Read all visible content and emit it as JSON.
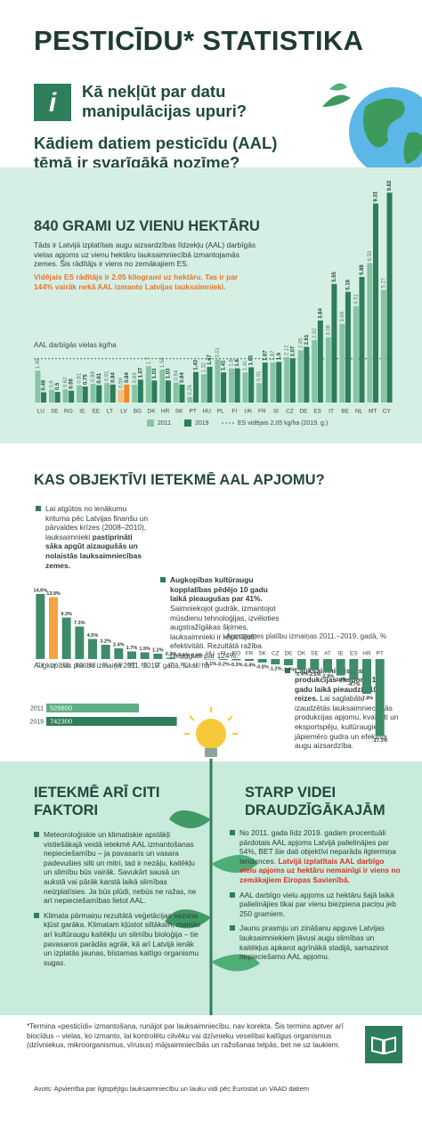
{
  "header": {
    "title": "PESTICĪDU* STATISTIKA",
    "question": "Kā nekļūt par datu manipulācijas upuri?",
    "subtitle": "Kādiem datiem pesticīdu (AAL) tēmā ir svarīgākā nozīme?"
  },
  "section1": {
    "heading": "840 GRAMI UZ VIENU HEKTĀRU",
    "text": "Tāds ir Latvijā izplatītais augu aizsardzības līdzekļu (AAL) darbīgās vielas apjoms uz vienu hektāru lauksaimniecībā izmantojamās zemes. Šis rādītājs ir viens no zemākajiem ES.",
    "highlight": "Vidējais ES rādītājs ir 2.05 kilogrami uz hektāru. Tas ir par 144% vairāk nekā AAL izmanto Latvijas lauksaimnieki."
  },
  "section2": {
    "heading": "KAS OBJEKTĪVI IETEKMĒ AAL APJOMU?",
    "items": [
      {
        "text": "Lai atgūtos no ienākumu krituma pēc Latvijas finanšu un pārvaldes krīzes (2008–2010), lauksaimnieki",
        "bold": "pastiprināti sāka apgūt aizaugušās un nolaistās lauksaimniecības zemes."
      },
      {
        "bold": "Augkopības kultūraugu kopplatības pēdējo 10 gadu laikā pieaugušas par 41%.",
        "text": "Saimniekojot gudrāk, izmantojot mūsdienu tehnoloģijas, izvēloties augstražīgākas šķirnes, lauksaimnieki ir kāpinājuši efektivitāti. Rezultātā ražība pieaugusi par 124%."
      },
      {
        "bold": "Lauksaimnieciskās produkcijas eksports 15 gadu laikā pieaudzis 10 reizes.",
        "text": "Lai saglabātu izaudzētās lauksaimnieciskās produkcijas apjomu, kvalitāti un eksportspēju, kultūraugiem jāpiemēro gudra un efektīva augu aizsardzība."
      }
    ]
  },
  "section3": {
    "left": {
      "heading": "IETEKMĒ ARĪ CITI FAKTORI",
      "items": [
        "Meteoroloģiskie un klimatiskie apstākļi vistiešākajā veidā ietekmē AAL izmantošanas nepieciešamību – ja pavasaris un vasara padevušies silti un mitri, tad ir nezāļu, kaitēkļu un slimību būs vairāk. Savukārt sausā un aukstā vai pārāk karstā laikā slimības neizplatīsies. Ja būs plūdi, nebūs ne ražas, ne arī nepieciešamības lietot AAL.",
        "Klimata pārmaiņu rezultātā veģetācijas sezona kļūst garāka. Klimatam kļūstot siltākam, mainās arī kultūraugu kaitēkļu un slimību bioloģija – tie pavasaros parādās agrāk, kā arī Latvijā ienāk un izplatās jaunas, bīstamas kaitīgo organismu sugas."
      ]
    },
    "right": {
      "heading": "STARP VIDEI DRAUDZĪGĀKAJĀM",
      "first": {
        "text": "No 2011. gada līdz 2019. gadam procentuāli pārdotais AAL apjoms Latvijā palielinājies par 54%, BET šie dati objektīvi neparāda ilgtermiņa tendences.",
        "highlight": "Latvijā izplatītais AAL darbīgo vielu apjoms uz hektāru nemainīgi ir viens no zemākajiem Eiropas Savienībā."
      },
      "items": [
        "AAL darbīgo vielu apjoms uz hektāru šajā laikā palielinājies tikai par vienu biezpiena paciņu jeb 250 gramiem.",
        "Jaunu prasmju un zināšanu apguve Latvijas lauksaimniekiem ļāvusi augu slimības un kaitēkļus apkarot agrīnākā stadijā, samazinot nepieciešamo AAL apjomu."
      ]
    }
  },
  "footnote": "*Termina «pesticīdi» izmantošana, runājot par lauksaimniecību, nav korekta. Šis termins aptver arī biocīdus – vielas, ko izmanto, lai kontrolētu cilvēku vai dzīvnieku veselībai kaitīgus organismus (dzīvniekus, mikroorganismus, vīrusus) mājsaimniecībās un ražošanas telpās, bet ne uz laukiem.",
  "source": "Avots: Apvienība par ilgtspējīgu lauksaimniecību un lauku vidi pēc Eurostat un VAAD datiem",
  "chart_data": [
    {
      "type": "grouped_bar",
      "y_label": "AAL darbīgās vielas kg/ha",
      "categories": [
        "LU",
        "SE",
        "RO",
        "IE",
        "EE",
        "LT",
        "LV",
        "BG",
        "DK",
        "HR",
        "SK",
        "PT",
        "HU",
        "PL",
        "FI",
        "UK",
        "FR",
        "SI",
        "CZ",
        "DE",
        "ES",
        "IT",
        "BE",
        "NL",
        "MT",
        "CY"
      ],
      "series": [
        {
          "name": "2011",
          "color": "#86c4a4",
          "values": [
            1.49,
            0.6,
            0.62,
            0.81,
            0.88,
            0.91,
            0.59,
            0.83,
            1.7,
            1.54,
            0.94,
            0.26,
            1.32,
            2.01,
            1.6,
            1.41,
            0.91,
            1.87,
            2.12,
            2.45,
            2.92,
            3.06,
            3.68,
            4.51,
            6.53,
            5.27
          ]
        },
        {
          "name": "2019",
          "color": "#2e7d5b",
          "values": [
            0.48,
            0.5,
            0.55,
            0.75,
            0.81,
            0.84,
            0.84,
            1.07,
            1.03,
            1.03,
            0.84,
            1.43,
            1.67,
            1.41,
            1.6,
            1.65,
            1.87,
            1.9,
            2.07,
            2.61,
            3.84,
            5.55,
            5.18,
            5.88,
            9.31,
            9.82
          ]
        }
      ],
      "highlight_index": 6,
      "highlight_colors": [
        "#f7bd7a",
        "#f08a24"
      ],
      "reference": {
        "value": 2.05,
        "label": "ES vidējais 2,05 kg/ha (2019. g.)"
      },
      "ylim": [
        0,
        10
      ]
    },
    {
      "type": "bar",
      "title": "Aramzemes platību izmaiņas 2011.–2019. gadā, %",
      "categories": [
        "CY",
        "LV",
        "EE",
        "BG",
        "BE",
        "SL",
        "GR",
        "MT",
        "NL",
        "LT",
        "IT",
        "PL",
        "LU",
        "HU",
        "FI",
        "RO",
        "FR",
        "SK",
        "CZ",
        "DE",
        "DK",
        "SE",
        "AT",
        "IE",
        "ES",
        "HR",
        "PT"
      ],
      "values": [
        14.6,
        13.9,
        9.3,
        7.3,
        4.5,
        3.2,
        2.4,
        1.7,
        1.5,
        1.2,
        0.3,
        0.1,
        0.0,
        -0.1,
        -0.2,
        -0.3,
        -0.4,
        -0.8,
        -1.2,
        -1.4,
        -2.4,
        -2.5,
        -2.9,
        -3.7,
        -4.7,
        -7.8,
        -17.3
      ],
      "value_labels": [
        "14.6%",
        "13.9%",
        "9.3%",
        "7.3%",
        "4.5%",
        "3.2%",
        "2.4%",
        "1.7%",
        "1.5%",
        "1.2%",
        "0.3%",
        "0.1%",
        "0.0%",
        "-0.1%",
        "-0.2%",
        "-0.3%",
        "-0.4%",
        "-0.8%",
        "-1.2%",
        "-1.4%",
        "-2.4%",
        "-2.5%",
        "-2.9%",
        "-3.7%",
        "-4.7%",
        "-7.8%",
        "-17.3%"
      ],
      "color": "#3f8c68",
      "highlight_index": 1,
      "highlight_color": "#f5a340",
      "ylim": [
        -18,
        15
      ]
    },
    {
      "type": "hbar",
      "title": "Augkopības platību izmaiņa 2011.-2019. gadā, tūkst. ha",
      "categories": [
        "2011",
        "2019"
      ],
      "values": [
        526600,
        742300
      ],
      "colors": [
        "#5fae86",
        "#2e7d5b"
      ],
      "xlim": [
        0,
        800000
      ]
    }
  ]
}
